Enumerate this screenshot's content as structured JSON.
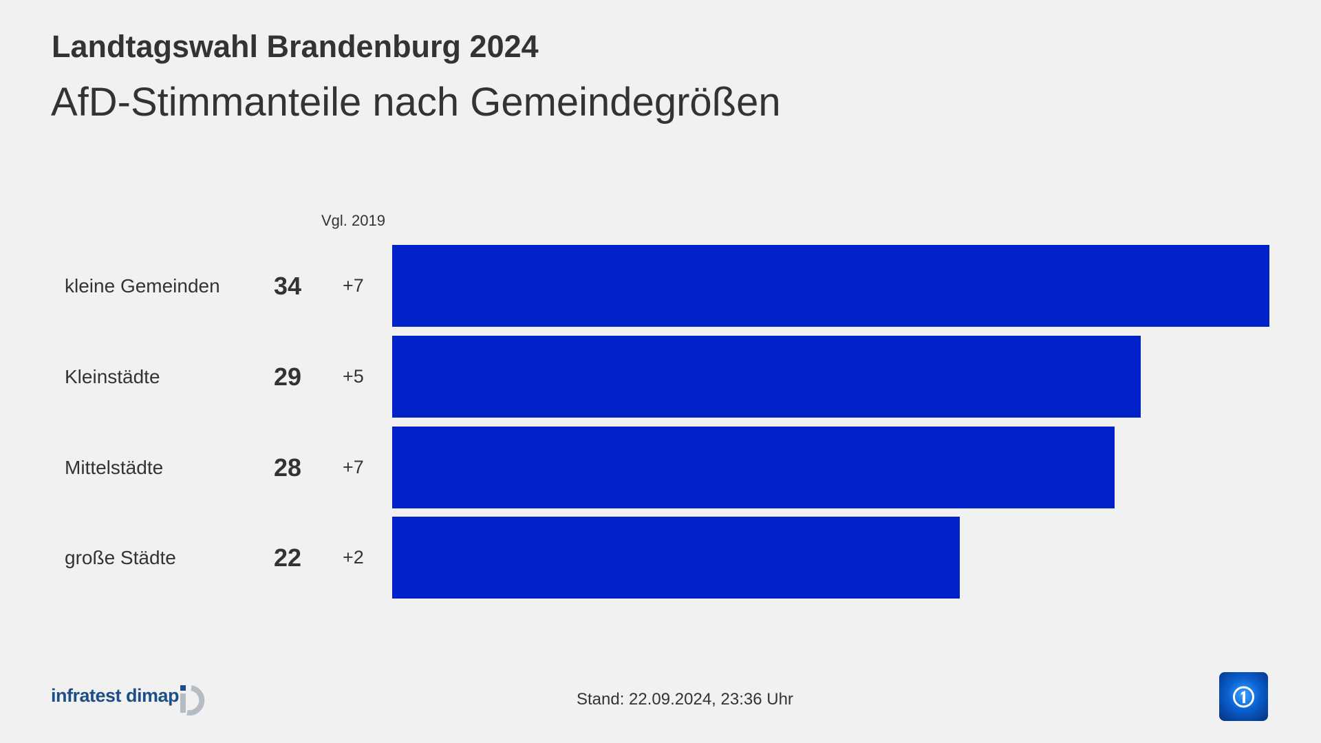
{
  "header": {
    "title": "Landtagswahl Brandenburg 2024",
    "subtitle": "AfD-Stimmanteile nach Gemeindegrößen"
  },
  "chart_data": {
    "type": "bar",
    "orientation": "horizontal",
    "categories": [
      "kleine Gemeinden",
      "Kleinstädte",
      "Mittelstädte",
      "große Städte"
    ],
    "values": [
      34,
      29,
      28,
      22
    ],
    "changes_label": "Vgl. 2019",
    "changes": [
      "+7",
      "+5",
      "+7",
      "+2"
    ],
    "bar_color": "#0020c8",
    "grid": false
  },
  "footer": {
    "source_logo": "infratest dimap",
    "stand": "Stand:  22.09.2024, 23:36 Uhr",
    "broadcaster_logo": "ARD Das Erste"
  },
  "colors": {
    "background": "#f1f1f1",
    "bar": "#0020c8",
    "text": "#333333"
  }
}
